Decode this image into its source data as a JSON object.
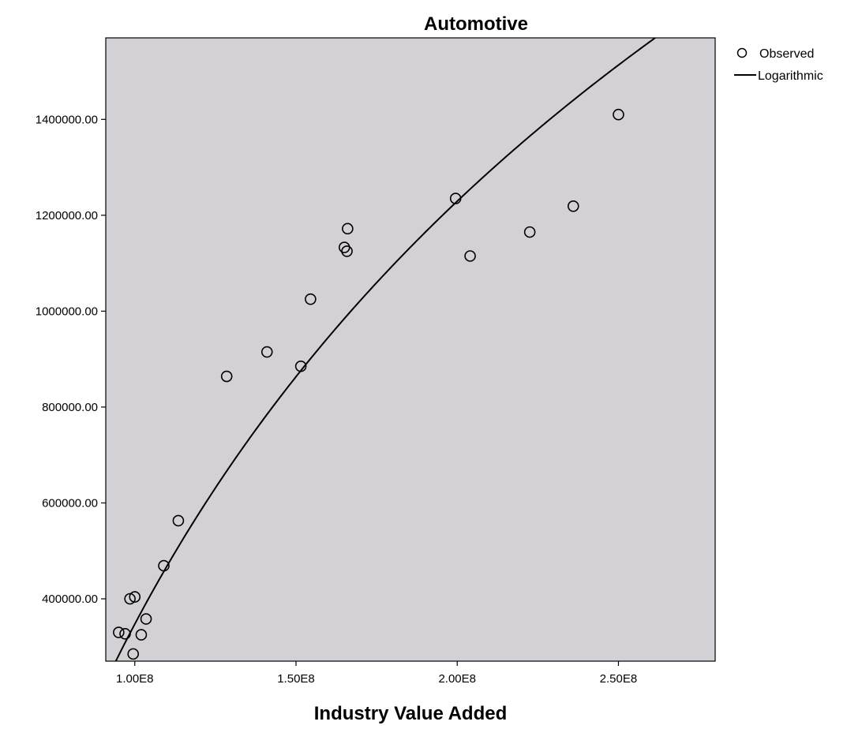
{
  "chart_data": {
    "type": "scatter",
    "title": "Automotive",
    "xlabel": "Industry Value Added",
    "ylabel": "",
    "xlim": [
      91000000,
      280000000
    ],
    "ylim": [
      270000,
      1570000
    ],
    "x_ticks": [
      100000000,
      150000000,
      200000000,
      250000000
    ],
    "x_tick_labels": [
      "1.00E8",
      "1.50E8",
      "2.00E8",
      "2.50E8"
    ],
    "y_ticks": [
      400000,
      600000,
      800000,
      1000000,
      1200000,
      1400000
    ],
    "y_tick_labels": [
      "400000.00",
      "600000.00",
      "800000.00",
      "1000000.00",
      "1200000.00",
      "1400000.00"
    ],
    "background_color": "#d3d0d6",
    "grid": false,
    "legend_position": "top-right",
    "series": [
      {
        "name": "Observed",
        "style": "open-circle",
        "points": [
          {
            "x": 95000000,
            "y": 330000
          },
          {
            "x": 97000000,
            "y": 327000
          },
          {
            "x": 98500000,
            "y": 400000
          },
          {
            "x": 99500000,
            "y": 285000
          },
          {
            "x": 100000000,
            "y": 404000
          },
          {
            "x": 102000000,
            "y": 325000
          },
          {
            "x": 103500000,
            "y": 358000
          },
          {
            "x": 109000000,
            "y": 469000
          },
          {
            "x": 113500000,
            "y": 563000
          },
          {
            "x": 128500000,
            "y": 864000
          },
          {
            "x": 141000000,
            "y": 915000
          },
          {
            "x": 151500000,
            "y": 885000
          },
          {
            "x": 154500000,
            "y": 1025000
          },
          {
            "x": 165000000,
            "y": 1133000
          },
          {
            "x": 165800000,
            "y": 1125000
          },
          {
            "x": 166000000,
            "y": 1172000
          },
          {
            "x": 199500000,
            "y": 1235000
          },
          {
            "x": 204000000,
            "y": 1115000
          },
          {
            "x": 222500000,
            "y": 1165000
          },
          {
            "x": 236000000,
            "y": 1219000
          },
          {
            "x": 250000000,
            "y": 1410000
          }
        ]
      },
      {
        "name": "Logarithmic",
        "style": "line",
        "model": "y = b0 + b1*ln(x)",
        "b0": -23093000,
        "b1": 1272500
      }
    ]
  }
}
